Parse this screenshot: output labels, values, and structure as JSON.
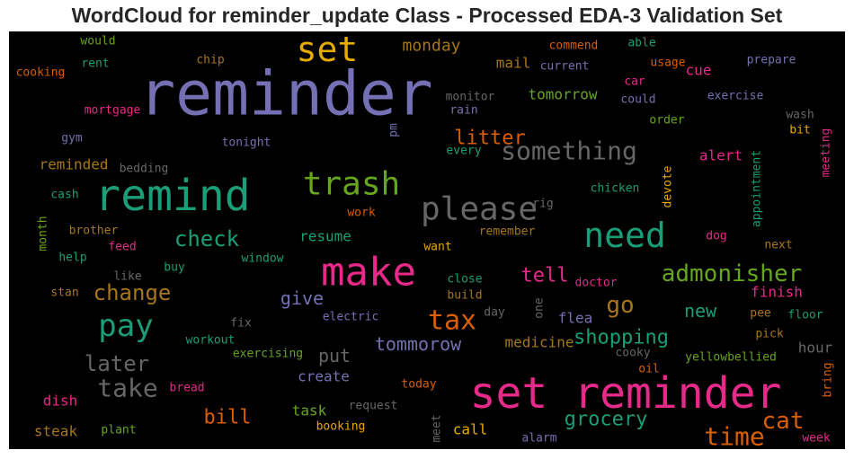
{
  "chart_data": {
    "type": "wordcloud",
    "title": "WordCloud for reminder_update Class - Processed EDA-3 Validation Set",
    "background": "#000000",
    "colormap": "Dark2",
    "palette": {
      "purple": "#7570b3",
      "orange": "#d95f02",
      "green": "#1b9e77",
      "magenta": "#e7298a",
      "lime": "#66a61e",
      "gold": "#e6ab02",
      "brown": "#a6761d",
      "gray": "#666666"
    },
    "words": [
      {
        "text": "reminder",
        "color": "purple"
      },
      {
        "text": "set reminder",
        "color": "magenta"
      },
      {
        "text": "remind",
        "color": "green"
      },
      {
        "text": "make",
        "color": "magenta"
      },
      {
        "text": "set",
        "color": "gold"
      },
      {
        "text": "need",
        "color": "green"
      },
      {
        "text": "please",
        "color": "gray"
      },
      {
        "text": "trash",
        "color": "lime"
      },
      {
        "text": "pay",
        "color": "green"
      },
      {
        "text": "something",
        "color": "gray"
      },
      {
        "text": "tax",
        "color": "orange"
      },
      {
        "text": "admonisher",
        "color": "lime"
      },
      {
        "text": "take",
        "color": "gray"
      },
      {
        "text": "time",
        "color": "orange"
      },
      {
        "text": "cat",
        "color": "orange"
      },
      {
        "text": "go",
        "color": "brown"
      },
      {
        "text": "later",
        "color": "gray"
      },
      {
        "text": "change",
        "color": "brown"
      },
      {
        "text": "check",
        "color": "green"
      },
      {
        "text": "litter",
        "color": "orange"
      },
      {
        "text": "grocery",
        "color": "green"
      },
      {
        "text": "shopping",
        "color": "green"
      },
      {
        "text": "tommorow",
        "color": "purple"
      },
      {
        "text": "tell",
        "color": "magenta"
      },
      {
        "text": "give",
        "color": "purple"
      },
      {
        "text": "bill",
        "color": "orange"
      },
      {
        "text": "new",
        "color": "green"
      },
      {
        "text": "put",
        "color": "gray"
      },
      {
        "text": "monday",
        "color": "brown"
      },
      {
        "text": "tomorrow",
        "color": "lime"
      },
      {
        "text": "medicine",
        "color": "brown"
      },
      {
        "text": "hour",
        "color": "gray"
      },
      {
        "text": "cue",
        "color": "magenta"
      },
      {
        "text": "create",
        "color": "purple"
      },
      {
        "text": "flea",
        "color": "purple"
      },
      {
        "text": "finish",
        "color": "magenta"
      },
      {
        "text": "resume",
        "color": "green"
      },
      {
        "text": "task",
        "color": "lime"
      },
      {
        "text": "alert",
        "color": "magenta"
      },
      {
        "text": "mail",
        "color": "brown"
      },
      {
        "text": "steak",
        "color": "brown"
      },
      {
        "text": "reminded",
        "color": "brown"
      },
      {
        "text": "dish",
        "color": "magenta"
      },
      {
        "text": "call",
        "color": "gold"
      },
      {
        "text": "would",
        "color": "lime"
      },
      {
        "text": "rent",
        "color": "green"
      },
      {
        "text": "cooking",
        "color": "orange"
      },
      {
        "text": "chip",
        "color": "brown"
      },
      {
        "text": "mortgage",
        "color": "magenta"
      },
      {
        "text": "gym",
        "color": "purple"
      },
      {
        "text": "tonight",
        "color": "purple"
      },
      {
        "text": "bedding",
        "color": "gray"
      },
      {
        "text": "cash",
        "color": "green"
      },
      {
        "text": "month",
        "color": "lime"
      },
      {
        "text": "brother",
        "color": "brown"
      },
      {
        "text": "feed",
        "color": "magenta"
      },
      {
        "text": "help",
        "color": "green"
      },
      {
        "text": "like",
        "color": "gray"
      },
      {
        "text": "buy",
        "color": "green"
      },
      {
        "text": "window",
        "color": "green"
      },
      {
        "text": "stan",
        "color": "brown"
      },
      {
        "text": "fix",
        "color": "gray"
      },
      {
        "text": "electric",
        "color": "purple"
      },
      {
        "text": "workout",
        "color": "green"
      },
      {
        "text": "exercising",
        "color": "lime"
      },
      {
        "text": "bread",
        "color": "magenta"
      },
      {
        "text": "plant",
        "color": "lime"
      },
      {
        "text": "request",
        "color": "gray"
      },
      {
        "text": "booking",
        "color": "gold"
      },
      {
        "text": "today",
        "color": "orange"
      },
      {
        "text": "meet",
        "color": "gray"
      },
      {
        "text": "alarm",
        "color": "purple"
      },
      {
        "text": "commend",
        "color": "orange"
      },
      {
        "text": "able",
        "color": "green"
      },
      {
        "text": "current",
        "color": "purple"
      },
      {
        "text": "usage",
        "color": "orange"
      },
      {
        "text": "prepare",
        "color": "purple"
      },
      {
        "text": "car",
        "color": "magenta"
      },
      {
        "text": "monitor",
        "color": "gray"
      },
      {
        "text": "could",
        "color": "purple"
      },
      {
        "text": "rain",
        "color": "purple"
      },
      {
        "text": "exercise",
        "color": "purple"
      },
      {
        "text": "pm",
        "color": "purple"
      },
      {
        "text": "order",
        "color": "lime"
      },
      {
        "text": "wash",
        "color": "gray"
      },
      {
        "text": "bit",
        "color": "gold"
      },
      {
        "text": "every",
        "color": "green"
      },
      {
        "text": "meeting",
        "color": "magenta"
      },
      {
        "text": "rig",
        "color": "gray"
      },
      {
        "text": "chicken",
        "color": "green"
      },
      {
        "text": "devote",
        "color": "gold"
      },
      {
        "text": "appointment",
        "color": "green"
      },
      {
        "text": "work",
        "color": "orange"
      },
      {
        "text": "remember",
        "color": "brown"
      },
      {
        "text": "dog",
        "color": "magenta"
      },
      {
        "text": "next",
        "color": "brown"
      },
      {
        "text": "want",
        "color": "gold"
      },
      {
        "text": "close",
        "color": "green"
      },
      {
        "text": "doctor",
        "color": "magenta"
      },
      {
        "text": "build",
        "color": "brown"
      },
      {
        "text": "one",
        "color": "gray"
      },
      {
        "text": "day",
        "color": "gray"
      },
      {
        "text": "pee",
        "color": "brown"
      },
      {
        "text": "floor",
        "color": "green"
      },
      {
        "text": "pick",
        "color": "brown"
      },
      {
        "text": "cooky",
        "color": "gray"
      },
      {
        "text": "yellowbellied",
        "color": "lime"
      },
      {
        "text": "oil",
        "color": "orange"
      },
      {
        "text": "bring",
        "color": "orange"
      },
      {
        "text": "week",
        "color": "magenta"
      }
    ]
  }
}
